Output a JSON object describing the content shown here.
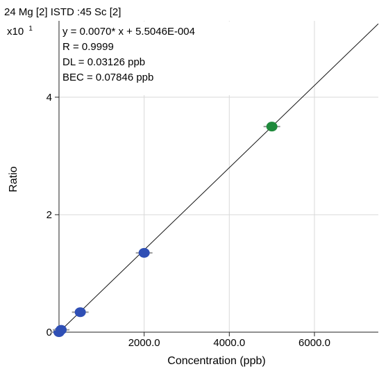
{
  "chart_data": {
    "type": "scatter",
    "title": "24 Mg [2] ISTD :45 Sc [2]",
    "y_multiplier": "x10",
    "y_multiplier_exp": "1",
    "xlabel": "Concentration (ppb)",
    "ylabel": "Ratio",
    "xlim": [
      0,
      7500
    ],
    "ylim": [
      0,
      5.3
    ],
    "x_ticks": [
      {
        "value": 2000,
        "label": "2000.0"
      },
      {
        "value": 4000,
        "label": "4000.0"
      },
      {
        "value": 6000,
        "label": "6000.0"
      }
    ],
    "y_ticks": [
      {
        "value": 0,
        "label": "0"
      },
      {
        "value": 2,
        "label": "2"
      },
      {
        "value": 4,
        "label": "4"
      }
    ],
    "grid": true,
    "annotations": [
      "y = 0.0070* x + 5.5046E-004",
      "R = 0.9999",
      "DL = 0.03126 ppb",
      "BEC = 0.07846 ppb"
    ],
    "fit": {
      "slope": 0.007,
      "intercept": 0.00055
    },
    "series": [
      {
        "colors": {
          "calibration": "#2f4fb5",
          "check": "#1f8a3c",
          "line": "#111111"
        },
        "points": [
          {
            "x": 0,
            "y": 0.0,
            "kind": "calibration"
          },
          {
            "x": 50,
            "y": 0.04,
            "kind": "calibration"
          },
          {
            "x": 500,
            "y": 0.34,
            "kind": "calibration"
          },
          {
            "x": 2000,
            "y": 1.35,
            "kind": "calibration"
          },
          {
            "x": 5000,
            "y": 3.5,
            "kind": "check"
          }
        ]
      }
    ]
  }
}
